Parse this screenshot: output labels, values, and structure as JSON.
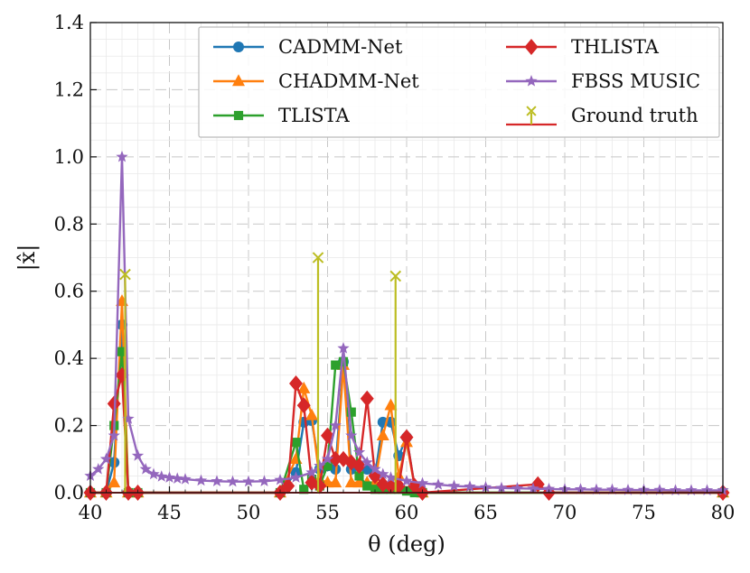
{
  "chart_data": {
    "type": "line",
    "xlabel": "θ (deg)",
    "ylabel": "|x̂|",
    "xlim": [
      40,
      80
    ],
    "ylim": [
      0,
      1.4
    ],
    "xticks": [
      40,
      45,
      50,
      55,
      60,
      65,
      70,
      75,
      80
    ],
    "yticks": [
      0.0,
      0.2,
      0.4,
      0.6,
      0.8,
      1.0,
      1.2,
      1.4
    ],
    "xtick_labels": [
      "40",
      "45",
      "50",
      "55",
      "60",
      "65",
      "70",
      "75",
      "80"
    ],
    "ytick_labels": [
      "0.0",
      "0.2",
      "0.4",
      "0.6",
      "0.8",
      "1.0",
      "1.2",
      "1.4"
    ],
    "grid": true,
    "legend_position": "top-right",
    "legend_columns": 2,
    "series": [
      {
        "name": "CADMM-Net",
        "color": "#1f77b4",
        "marker": "circle",
        "x": [
          40,
          41,
          41.5,
          42,
          42.4,
          43,
          52,
          53,
          53.5,
          54,
          54.5,
          55,
          55.5,
          56,
          56.5,
          57,
          57.5,
          58,
          58.5,
          59,
          59.5,
          60,
          60.5,
          61,
          80
        ],
        "y": [
          0,
          0,
          0.09,
          0.5,
          0,
          0,
          0,
          0.06,
          0.21,
          0.215,
          0.07,
          0.08,
          0.07,
          0.39,
          0.07,
          0.08,
          0.07,
          0.05,
          0.21,
          0.21,
          0.11,
          0.165,
          0.02,
          0,
          0
        ]
      },
      {
        "name": "CHADMM-Net",
        "color": "#ff7f0e",
        "marker": "triangle",
        "x": [
          40,
          41,
          41.5,
          42,
          42.4,
          43,
          52,
          53,
          53.5,
          54,
          54.5,
          55,
          55.5,
          56,
          56.5,
          57,
          57.5,
          58,
          58.5,
          59,
          59.5,
          60,
          60.5,
          61,
          80
        ],
        "y": [
          0,
          0,
          0.03,
          0.57,
          0,
          0,
          0,
          0.1,
          0.31,
          0.23,
          0.04,
          0.03,
          0.03,
          0.38,
          0.03,
          0.03,
          0.03,
          0.03,
          0.17,
          0.26,
          0.05,
          0.15,
          0.02,
          0,
          0
        ]
      },
      {
        "name": "TLISTA",
        "color": "#2ca02c",
        "marker": "square",
        "x": [
          40,
          41,
          41.5,
          42,
          42.4,
          43,
          52,
          53,
          53.5,
          54,
          54.5,
          55,
          55.5,
          56,
          56.5,
          57,
          57.5,
          58,
          58.5,
          59,
          59.5,
          60,
          60.5,
          61,
          80
        ],
        "y": [
          0,
          0,
          0.2,
          0.42,
          0,
          0,
          0,
          0.15,
          0.01,
          0.04,
          0.02,
          0.08,
          0.38,
          0.39,
          0.24,
          0.05,
          0.02,
          0.01,
          0.01,
          0.01,
          0.01,
          0.005,
          0,
          0,
          0
        ]
      },
      {
        "name": "THLISTA",
        "color": "#d62728",
        "marker": "diamond",
        "x": [
          40,
          41,
          41.5,
          42,
          42.4,
          43,
          52,
          52.5,
          53,
          53.5,
          54,
          54.5,
          55,
          55.5,
          56,
          56.5,
          57,
          57.5,
          58,
          58.5,
          59,
          59.5,
          60,
          60.5,
          61,
          68.3,
          69,
          80
        ],
        "y": [
          0,
          0,
          0.265,
          0.35,
          0,
          0,
          0,
          0.02,
          0.325,
          0.26,
          0.03,
          0.02,
          0.17,
          0.1,
          0.1,
          0.09,
          0.08,
          0.28,
          0.05,
          0.025,
          0.02,
          0.02,
          0.165,
          0.02,
          0,
          0.025,
          0,
          0
        ]
      },
      {
        "name": "FBSS MUSIC",
        "color": "#9467bd",
        "marker": "star",
        "x": [
          40,
          40.5,
          41,
          41.5,
          42,
          42.4,
          43,
          43.5,
          44,
          44.5,
          45,
          45.5,
          46,
          47,
          48,
          49,
          50,
          51,
          52,
          53,
          54,
          54.5,
          55,
          55.5,
          56,
          56.5,
          57,
          57.5,
          58,
          58.5,
          59,
          60,
          61,
          62,
          63,
          64,
          65,
          66,
          67,
          68,
          69,
          70,
          71,
          72,
          73,
          74,
          75,
          76,
          77,
          78,
          79,
          80
        ],
        "y": [
          0.05,
          0.07,
          0.1,
          0.17,
          1.0,
          0.22,
          0.11,
          0.07,
          0.055,
          0.048,
          0.045,
          0.042,
          0.04,
          0.036,
          0.034,
          0.033,
          0.033,
          0.034,
          0.038,
          0.045,
          0.06,
          0.08,
          0.1,
          0.2,
          0.43,
          0.17,
          0.12,
          0.09,
          0.07,
          0.055,
          0.045,
          0.035,
          0.028,
          0.024,
          0.02,
          0.018,
          0.016,
          0.014,
          0.013,
          0.012,
          0.011,
          0.01,
          0.01,
          0.009,
          0.009,
          0.008,
          0.008,
          0.008,
          0.007,
          0.007,
          0.007,
          0.007
        ]
      }
    ],
    "ground_truth": {
      "name": "Ground truth",
      "line_color": "#d62728",
      "marker_color": "#bcbd22",
      "x": [
        42.2,
        54.4,
        59.3
      ],
      "y": [
        0.65,
        0.7,
        0.645
      ]
    }
  }
}
